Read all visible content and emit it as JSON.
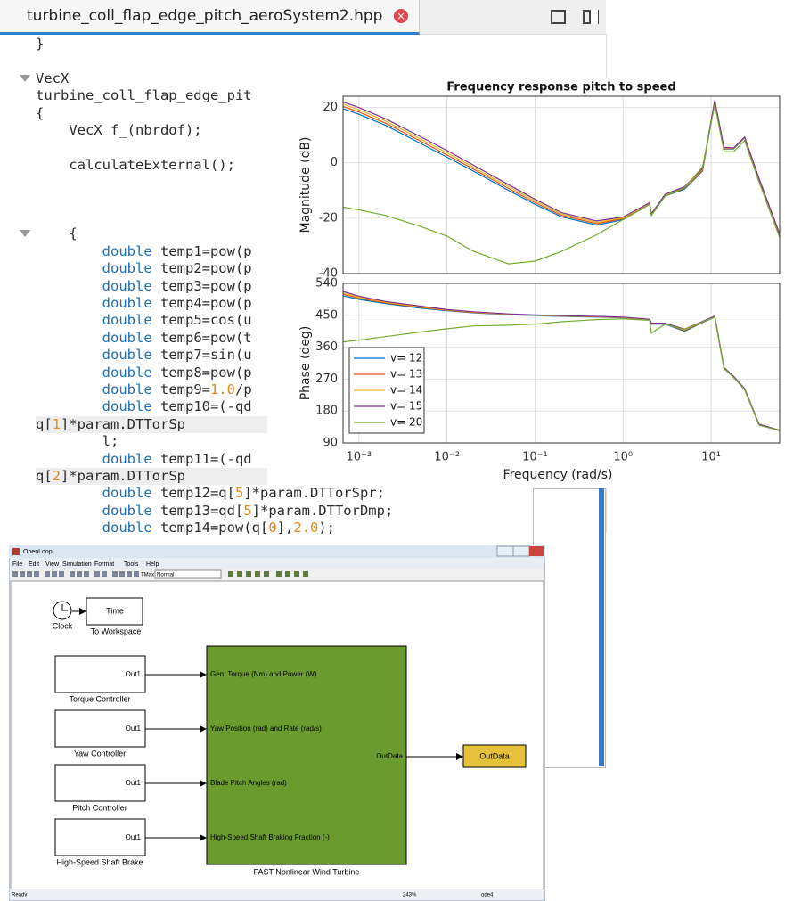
{
  "editor": {
    "tab_title": "turbine_coll_flap_edge_pitch_aeroSystem2.hpp",
    "lines": [
      "}",
      "VecX",
      "turbine_coll_flap_edge_pit",
      "{",
      "    VecX f_(nbrdof);",
      "    calculateExternal();",
      "    {",
      "        double temp1=pow(p",
      "        double temp2=pow(p",
      "        double temp3=pow(p",
      "        double temp4=pow(p",
      "        double temp5=cos(u",
      "        double temp6=pow(t",
      "        double temp7=sin(u",
      "        double temp8=pow(p",
      "        double temp9=1.0/p",
      "        double temp10=(-qd",
      "q[1]*param.DTTorSp",
      "        l;",
      "        double temp11=(-qd",
      "q[2]*param.DTTorSp",
      "        double temp12=q[5]*param.DTTorSpr;",
      "        double temp13=qd[5]*param.DTTorDmp;",
      "        double temp14=pow(q[0],2.0);"
    ]
  },
  "chart_data": [
    {
      "type": "line",
      "title": "Frequency response pitch to speed",
      "ylabel": "Magnitude (dB)",
      "xscale": "log",
      "grid": true,
      "x": [
        0.00066,
        0.001,
        0.002,
        0.005,
        0.01,
        0.02,
        0.05,
        0.1,
        0.2,
        0.5,
        1,
        2,
        2.1,
        3,
        5,
        8,
        11,
        14,
        18,
        24,
        35,
        60
      ],
      "xlim": [
        0.00066,
        60
      ],
      "xticks": [
        0.001,
        0.01,
        0.1,
        1,
        10
      ],
      "ylim": [
        -40,
        24
      ],
      "yticks": [
        -40,
        -20,
        0,
        20
      ],
      "series": [
        {
          "name": "v= 12",
          "color": "#0072bd",
          "values": [
            19.5,
            17.5,
            13.5,
            7,
            2,
            -3,
            -10,
            -15,
            -19.5,
            -22.5,
            -20.5,
            -15,
            -19,
            -12,
            -9.5,
            -3,
            22,
            5,
            5,
            9,
            -6,
            -26
          ]
        },
        {
          "name": "v= 13",
          "color": "#d95319",
          "values": [
            20.3,
            18.3,
            14.3,
            7.8,
            2.8,
            -2.3,
            -9.3,
            -14.4,
            -19,
            -22,
            -20.2,
            -14.8,
            -18.8,
            -11.8,
            -9.2,
            -2.7,
            22.2,
            5.2,
            5.1,
            9.1,
            -5.9,
            -25.9
          ]
        },
        {
          "name": "v= 14",
          "color": "#edb120",
          "values": [
            21.1,
            19.1,
            15.1,
            8.6,
            3.6,
            -1.6,
            -8.6,
            -13.8,
            -18.5,
            -21.5,
            -19.9,
            -14.6,
            -18.6,
            -11.6,
            -8.9,
            -2.4,
            22.4,
            5.4,
            5.2,
            9.2,
            -5.8,
            -25.8
          ]
        },
        {
          "name": "v= 15",
          "color": "#7e2f8e",
          "values": [
            21.9,
            19.9,
            15.9,
            9.4,
            4.4,
            -0.9,
            -7.9,
            -13.2,
            -18,
            -21,
            -19.6,
            -14.4,
            -18.4,
            -11.4,
            -8.6,
            -2.1,
            22.6,
            5.6,
            5.3,
            9.3,
            -5.7,
            -25.7
          ]
        },
        {
          "name": "v= 20",
          "color": "#77ac30",
          "values": [
            -16,
            -17,
            -19,
            -23,
            -26.5,
            -32,
            -36.5,
            -35.5,
            -32,
            -26,
            -20.5,
            -15,
            -19,
            -12,
            -9,
            -1.5,
            21,
            4,
            4,
            8,
            -7,
            -27
          ]
        }
      ]
    },
    {
      "type": "line",
      "ylabel": "Phase (deg)",
      "xlabel": "Frequency  (rad/s)",
      "xscale": "log",
      "grid": true,
      "legend": "lower left",
      "x": [
        0.00066,
        0.001,
        0.002,
        0.005,
        0.01,
        0.02,
        0.05,
        0.1,
        0.2,
        0.5,
        1,
        2,
        2.1,
        3,
        5,
        8,
        11,
        14,
        18,
        24,
        35,
        60
      ],
      "xlim": [
        0.00066,
        60
      ],
      "xticks": [
        {
          "value": 0.001,
          "label": "10⁻³"
        },
        {
          "value": 0.01,
          "label": "10⁻²"
        },
        {
          "value": 0.1,
          "label": "10⁻¹"
        },
        {
          "value": 1,
          "label": "10⁰"
        },
        {
          "value": 10,
          "label": "10¹"
        }
      ],
      "ylim": [
        90,
        540
      ],
      "yticks": [
        90,
        180,
        270,
        360,
        450,
        540
      ],
      "series": [
        {
          "name": "v= 12",
          "color": "#0072bd",
          "values": [
            505,
            495,
            483,
            470,
            463,
            457,
            452,
            449,
            447,
            445,
            443,
            437,
            425,
            425,
            405,
            430,
            445,
            300,
            275,
            240,
            140,
            125
          ]
        },
        {
          "name": "v= 13",
          "color": "#d95319",
          "values": [
            509,
            498,
            485,
            472,
            464,
            458,
            453,
            450,
            448,
            446,
            444,
            438,
            426,
            426,
            407,
            431,
            446,
            301,
            276,
            241,
            141,
            125
          ]
        },
        {
          "name": "v= 14",
          "color": "#edb120",
          "values": [
            513,
            501,
            487,
            474,
            465,
            459,
            453,
            450,
            448,
            446,
            444,
            438,
            427,
            427,
            409,
            432,
            447,
            302,
            277,
            242,
            142,
            126
          ]
        },
        {
          "name": "v= 15",
          "color": "#7e2f8e",
          "values": [
            517,
            504,
            489,
            476,
            466,
            460,
            454,
            451,
            449,
            447,
            445,
            439,
            428,
            428,
            411,
            433,
            448,
            303,
            278,
            243,
            143,
            126
          ]
        },
        {
          "name": "v= 20",
          "color": "#77ac30",
          "values": [
            375,
            380,
            390,
            403,
            412,
            420,
            422,
            425,
            432,
            438,
            440,
            436,
            400,
            425,
            410,
            432,
            445,
            300,
            275,
            240,
            140,
            125
          ]
        }
      ]
    }
  ],
  "simulink": {
    "title": "OpenLoop",
    "menu": [
      "File",
      "Edit",
      "View",
      "Simulation",
      "Format",
      "Tools",
      "Help"
    ],
    "toolbar": {
      "stop_time": "TMax",
      "mode": "Normal"
    },
    "clock": "Clock",
    "to_workspace": {
      "text": "Time",
      "label": "To Workspace"
    },
    "controllers": [
      {
        "port": "Out1",
        "label": "Torque Controller"
      },
      {
        "port": "Out1",
        "label": "Yaw Controller"
      },
      {
        "port": "Out1",
        "label": "Pitch Controller"
      },
      {
        "port": "Out1",
        "label": "High-Speed Shaft Brake"
      }
    ],
    "turbine": {
      "label": "FAST Nonlinear Wind Turbine",
      "inputs": [
        "Gen. Torque (Nm) and Power (W)",
        "Yaw Position (rad) and Rate (rad/s)",
        "Blade Pitch Angles (rad)",
        "High-Speed Shaft Braking Fraction (-)"
      ],
      "output": "OutData"
    },
    "outport": "OutData",
    "status": {
      "left": "Ready",
      "zoom": "243%",
      "solver": "ode4"
    }
  }
}
